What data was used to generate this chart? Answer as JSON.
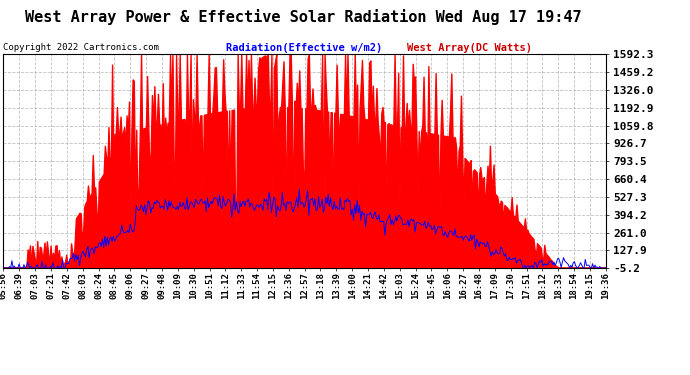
{
  "title": "West Array Power & Effective Solar Radiation Wed Aug 17 19:47",
  "copyright": "Copyright 2022 Cartronics.com",
  "legend_radiation": "Radiation(Effective w/m2)",
  "legend_west": "West Array(DC Watts)",
  "legend_radiation_color": "#0000ff",
  "legend_west_color": "#cc0000",
  "fill_color": "#ff0000",
  "line_color": "#0000ff",
  "background_color": "#ffffff",
  "grid_color": "#bbbbbb",
  "title_fontsize": 11,
  "ylabel_fontsize": 8,
  "xlabel_fontsize": 6.5,
  "ylim": [
    -5.2,
    1592.3
  ],
  "yticks": [
    1592.3,
    1459.2,
    1326.0,
    1192.9,
    1059.8,
    926.7,
    793.5,
    660.4,
    527.3,
    394.2,
    261.0,
    127.9,
    -5.2
  ],
  "x_labels": [
    "05:56",
    "06:39",
    "07:03",
    "07:21",
    "07:42",
    "08:03",
    "08:24",
    "08:45",
    "09:06",
    "09:27",
    "09:48",
    "10:09",
    "10:30",
    "10:51",
    "11:12",
    "11:33",
    "11:54",
    "12:15",
    "12:36",
    "12:57",
    "13:18",
    "13:39",
    "14:00",
    "14:21",
    "14:42",
    "15:03",
    "15:24",
    "15:45",
    "16:06",
    "16:27",
    "16:48",
    "17:09",
    "17:30",
    "17:51",
    "18:12",
    "18:33",
    "18:54",
    "19:15",
    "19:36"
  ]
}
